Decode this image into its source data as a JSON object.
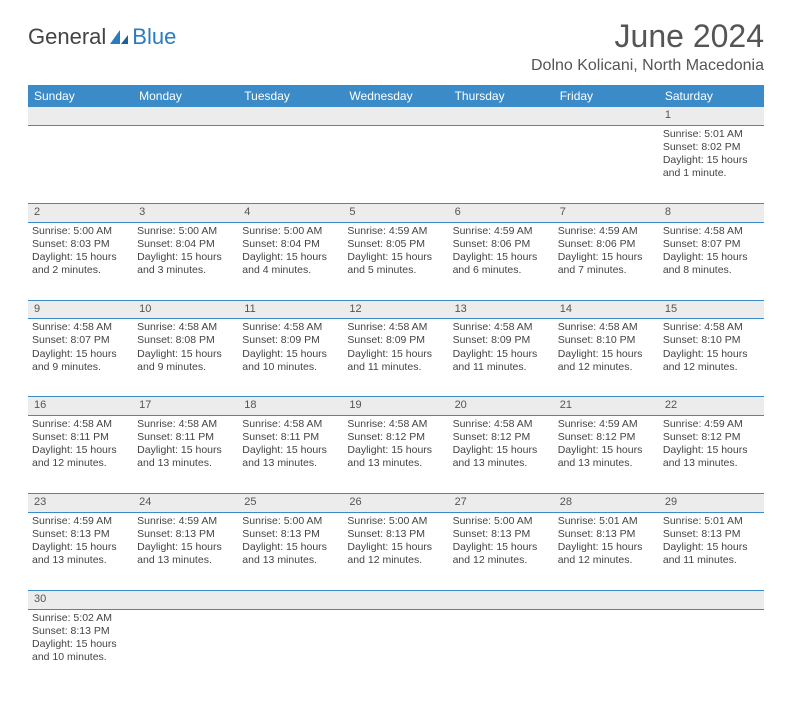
{
  "logo": {
    "part1": "General",
    "part2": "Blue"
  },
  "title": "June 2024",
  "location": "Dolno Kolicani, North Macedonia",
  "day_headers": [
    "Sunday",
    "Monday",
    "Tuesday",
    "Wednesday",
    "Thursday",
    "Friday",
    "Saturday"
  ],
  "colors": {
    "header_bg": "#3b8bc9",
    "header_text": "#ffffff",
    "daynum_bg": "#ececec",
    "border": "#3b8bc9"
  },
  "weeks": [
    {
      "nums": [
        "",
        "",
        "",
        "",
        "",
        "",
        "1"
      ],
      "cells": [
        "",
        "",
        "",
        "",
        "",
        "",
        "Sunrise: 5:01 AM\nSunset: 8:02 PM\nDaylight: 15 hours and 1 minute."
      ]
    },
    {
      "nums": [
        "2",
        "3",
        "4",
        "5",
        "6",
        "7",
        "8"
      ],
      "cells": [
        "Sunrise: 5:00 AM\nSunset: 8:03 PM\nDaylight: 15 hours and 2 minutes.",
        "Sunrise: 5:00 AM\nSunset: 8:04 PM\nDaylight: 15 hours and 3 minutes.",
        "Sunrise: 5:00 AM\nSunset: 8:04 PM\nDaylight: 15 hours and 4 minutes.",
        "Sunrise: 4:59 AM\nSunset: 8:05 PM\nDaylight: 15 hours and 5 minutes.",
        "Sunrise: 4:59 AM\nSunset: 8:06 PM\nDaylight: 15 hours and 6 minutes.",
        "Sunrise: 4:59 AM\nSunset: 8:06 PM\nDaylight: 15 hours and 7 minutes.",
        "Sunrise: 4:58 AM\nSunset: 8:07 PM\nDaylight: 15 hours and 8 minutes."
      ]
    },
    {
      "nums": [
        "9",
        "10",
        "11",
        "12",
        "13",
        "14",
        "15"
      ],
      "cells": [
        "Sunrise: 4:58 AM\nSunset: 8:07 PM\nDaylight: 15 hours and 9 minutes.",
        "Sunrise: 4:58 AM\nSunset: 8:08 PM\nDaylight: 15 hours and 9 minutes.",
        "Sunrise: 4:58 AM\nSunset: 8:09 PM\nDaylight: 15 hours and 10 minutes.",
        "Sunrise: 4:58 AM\nSunset: 8:09 PM\nDaylight: 15 hours and 11 minutes.",
        "Sunrise: 4:58 AM\nSunset: 8:09 PM\nDaylight: 15 hours and 11 minutes.",
        "Sunrise: 4:58 AM\nSunset: 8:10 PM\nDaylight: 15 hours and 12 minutes.",
        "Sunrise: 4:58 AM\nSunset: 8:10 PM\nDaylight: 15 hours and 12 minutes."
      ]
    },
    {
      "nums": [
        "16",
        "17",
        "18",
        "19",
        "20",
        "21",
        "22"
      ],
      "cells": [
        "Sunrise: 4:58 AM\nSunset: 8:11 PM\nDaylight: 15 hours and 12 minutes.",
        "Sunrise: 4:58 AM\nSunset: 8:11 PM\nDaylight: 15 hours and 13 minutes.",
        "Sunrise: 4:58 AM\nSunset: 8:11 PM\nDaylight: 15 hours and 13 minutes.",
        "Sunrise: 4:58 AM\nSunset: 8:12 PM\nDaylight: 15 hours and 13 minutes.",
        "Sunrise: 4:58 AM\nSunset: 8:12 PM\nDaylight: 15 hours and 13 minutes.",
        "Sunrise: 4:59 AM\nSunset: 8:12 PM\nDaylight: 15 hours and 13 minutes.",
        "Sunrise: 4:59 AM\nSunset: 8:12 PM\nDaylight: 15 hours and 13 minutes."
      ]
    },
    {
      "nums": [
        "23",
        "24",
        "25",
        "26",
        "27",
        "28",
        "29"
      ],
      "cells": [
        "Sunrise: 4:59 AM\nSunset: 8:13 PM\nDaylight: 15 hours and 13 minutes.",
        "Sunrise: 4:59 AM\nSunset: 8:13 PM\nDaylight: 15 hours and 13 minutes.",
        "Sunrise: 5:00 AM\nSunset: 8:13 PM\nDaylight: 15 hours and 13 minutes.",
        "Sunrise: 5:00 AM\nSunset: 8:13 PM\nDaylight: 15 hours and 12 minutes.",
        "Sunrise: 5:00 AM\nSunset: 8:13 PM\nDaylight: 15 hours and 12 minutes.",
        "Sunrise: 5:01 AM\nSunset: 8:13 PM\nDaylight: 15 hours and 12 minutes.",
        "Sunrise: 5:01 AM\nSunset: 8:13 PM\nDaylight: 15 hours and 11 minutes."
      ]
    },
    {
      "nums": [
        "30",
        "",
        "",
        "",
        "",
        "",
        ""
      ],
      "cells": [
        "Sunrise: 5:02 AM\nSunset: 8:13 PM\nDaylight: 15 hours and 10 minutes.",
        "",
        "",
        "",
        "",
        "",
        ""
      ]
    }
  ]
}
